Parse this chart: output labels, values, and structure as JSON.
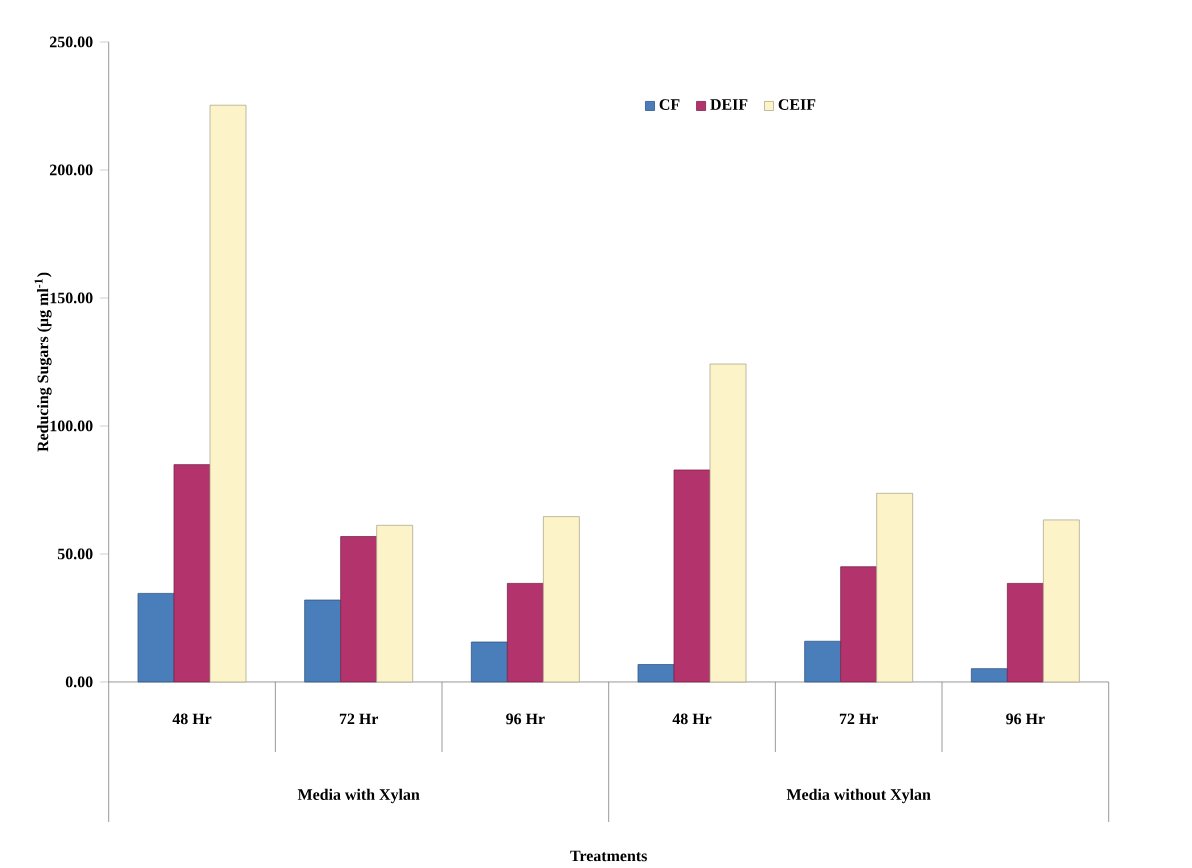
{
  "chart_data": {
    "type": "bar",
    "ylabel": "Reducing Sugars (µg ml$^{-1}$)",
    "categories": [
      "48 Hr",
      "72 Hr",
      "96 Hr",
      "48 Hr",
      "72 Hr",
      "96 Hr"
    ],
    "annotations": [
      "Media with Xylan",
      "Media without Xylan",
      "Treatments"
    ],
    "series": [
      {
        "name": "CF",
        "color": "#4a7ebb",
        "values": [
          34.6,
          32.0,
          15.6,
          6.8,
          15.9,
          5.2
        ]
      },
      {
        "name": "DEIF",
        "color": "#b3336c",
        "values": [
          84.9,
          56.8,
          38.5,
          82.8,
          45.0,
          38.5
        ]
      },
      {
        "name": "CEIF",
        "color": "#fcf3c9",
        "values": [
          225.3,
          61.2,
          64.6,
          124.2,
          73.7,
          63.3
        ]
      }
    ],
    "ylim": [
      0,
      250
    ],
    "yticks": [
      {
        "value": 0,
        "label": "0.00"
      },
      {
        "value": 50,
        "label": "50.00"
      },
      {
        "value": 100,
        "label": "100.00"
      },
      {
        "value": 150,
        "label": "150.00"
      },
      {
        "value": 200,
        "label": "200.00"
      },
      {
        "value": 250,
        "label": "250.00"
      }
    ],
    "legend": "top right",
    "grid": false
  }
}
